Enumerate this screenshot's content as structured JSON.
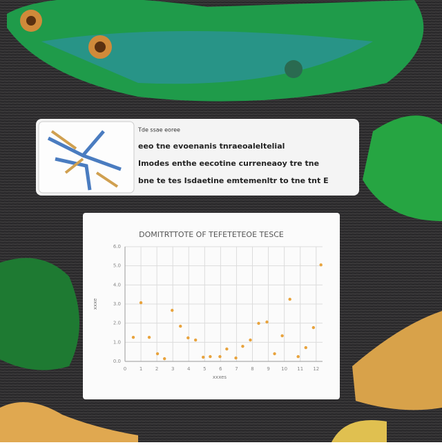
{
  "card": {
    "title": "Tde ssae eoree",
    "lines": [
      "eeo tne evoenanis tnraeoaleltelial",
      "Imodes enthe eecotine curreneaoy tre tne",
      "bne te tes Isdaetine emtemenltr to tne tnt E"
    ]
  },
  "chart_data": {
    "type": "scatter",
    "title": "DOMITRTTOTE OF TEFETETEOE TESCE",
    "x_label": "xxxes",
    "y_label": "xxxe",
    "x": [
      0.52,
      1.0,
      1.52,
      2.04,
      2.48,
      2.96,
      3.48,
      3.96,
      4.43,
      4.91,
      5.35,
      5.96,
      6.39,
      6.96,
      7.39,
      7.87,
      8.39,
      8.91,
      9.39,
      9.87,
      10.35,
      10.87,
      11.35,
      11.83,
      12.3
    ],
    "values": [
      1.26,
      3.07,
      1.26,
      0.4,
      0.14,
      2.67,
      1.84,
      1.23,
      1.12,
      0.22,
      0.25,
      0.25,
      0.65,
      0.18,
      0.79,
      1.12,
      1.99,
      2.06,
      0.4,
      1.34,
      3.25,
      0.25,
      0.72,
      1.77,
      5.05
    ],
    "color": "#e8a33d",
    "xlim": [
      0,
      12.4
    ],
    "ylim": [
      0,
      6
    ],
    "xticks": [
      0,
      1,
      2,
      3,
      4,
      5,
      6,
      7,
      8,
      9,
      10,
      11,
      12
    ],
    "yticks": [
      {
        "value": 0,
        "label": "0.0"
      },
      {
        "value": 1,
        "label": "1.0"
      },
      {
        "value": 2,
        "label": "2.0"
      },
      {
        "value": 3,
        "label": "3.0"
      },
      {
        "value": 4,
        "label": "4.0"
      },
      {
        "value": 5,
        "label": "5.0"
      },
      {
        "value": 6,
        "label": "6.0"
      }
    ],
    "grid": true
  }
}
